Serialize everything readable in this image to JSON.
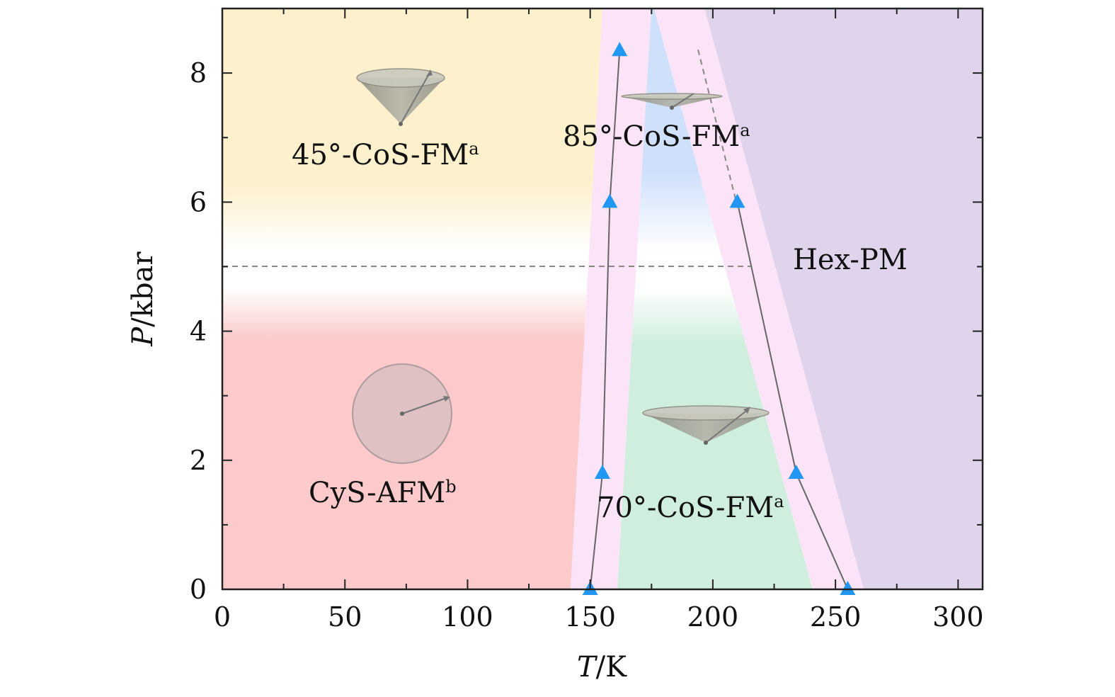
{
  "chart_data": {
    "type": "scatter",
    "title": "",
    "xlabel_var": "T",
    "xlabel_unit": "/K",
    "ylabel_var": "P",
    "ylabel_unit": "/kbar",
    "xlim": [
      0,
      310
    ],
    "ylim": [
      0,
      9
    ],
    "xticks": [
      0,
      50,
      100,
      150,
      200,
      250,
      300
    ],
    "yticks": [
      0,
      2,
      4,
      6,
      8
    ],
    "dashed_line_P": 5.0,
    "regions": [
      {
        "name": "45°-CoS-FM",
        "sup": "a"
      },
      {
        "name": "85°-CoS-FM",
        "sup": "a"
      },
      {
        "name": "Hex-PM",
        "sup": ""
      },
      {
        "name": "CyS-AFM",
        "sup": "b"
      },
      {
        "name": "70°-CoS-FM",
        "sup": "a"
      }
    ],
    "series": [
      {
        "color": "#2196F3",
        "points": [
          [
            150,
            0
          ],
          [
            155,
            1.8
          ],
          [
            158,
            6.0
          ],
          [
            162,
            8.35
          ]
        ]
      },
      {
        "color": "#2196F3",
        "points": [
          [
            255,
            0
          ],
          [
            234,
            1.8
          ],
          [
            210,
            6.0
          ]
        ]
      }
    ],
    "colors": {
      "top_left": "#fdf0cc",
      "bottom_left": "#fccaca",
      "pink_band": "#fce4f8",
      "top_middle": "#cfe0fb",
      "bottom_middle": "#cfeedd",
      "right": "#e0d3ec",
      "marker": "#2196F3"
    }
  }
}
